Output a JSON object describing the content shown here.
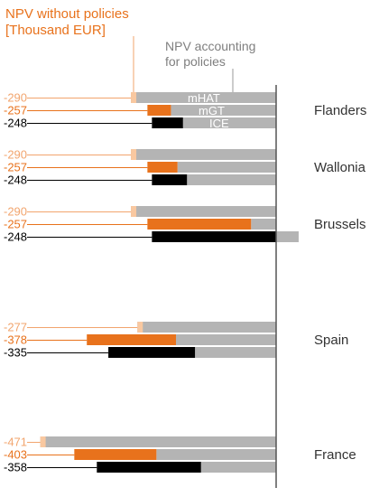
{
  "chart_data": {
    "type": "bar",
    "title": "NPV without policies [Thousand EUR]",
    "title_lines": [
      "NPV without policies",
      "[Thousand EUR]"
    ],
    "annotation_lines": [
      "NPV accounting",
      "for policies"
    ],
    "series_labels": [
      "mHAT",
      "mGT",
      "ICE"
    ],
    "series_colors": {
      "mHAT": "#f9c8a0",
      "mGT": "#e8721c",
      "ICE": "#000000",
      "with_policies": "#b4b4b4"
    },
    "value_label_colors": {
      "mHAT": "#f2a56e",
      "mGT": "#e8721c",
      "ICE": "#000000"
    },
    "regions": [
      {
        "name": "Flanders",
        "rows": [
          {
            "series": "mHAT",
            "label": "-290",
            "without": -290,
            "with": -290
          },
          {
            "series": "mGT",
            "label": "-257",
            "without": -257,
            "with": -210
          },
          {
            "series": "ICE",
            "label": "-248",
            "without": -248,
            "with": -186
          }
        ]
      },
      {
        "name": "Wallonia",
        "rows": [
          {
            "series": "mHAT",
            "label": "-290",
            "without": -290,
            "with": -290
          },
          {
            "series": "mGT",
            "label": "-257",
            "without": -257,
            "with": -197
          },
          {
            "series": "ICE",
            "label": "-248",
            "without": -248,
            "with": -178
          }
        ]
      },
      {
        "name": "Brussels",
        "rows": [
          {
            "series": "mHAT",
            "label": "-290",
            "without": -290,
            "with": -290
          },
          {
            "series": "mGT",
            "label": "-257",
            "without": -257,
            "with": -50
          },
          {
            "series": "ICE",
            "label": "-248",
            "without": -248,
            "with": 45
          }
        ]
      },
      {
        "name": "Spain",
        "rows": [
          {
            "series": "mHAT",
            "label": "-277",
            "without": -277,
            "with": -277
          },
          {
            "series": "mGT",
            "label": "-378",
            "without": -378,
            "with": -200
          },
          {
            "series": "ICE",
            "label": "-335",
            "without": -335,
            "with": -162
          }
        ]
      },
      {
        "name": "France",
        "rows": [
          {
            "series": "mHAT",
            "label": "-471",
            "without": -471,
            "with": -471
          },
          {
            "series": "mGT",
            "label": "-403",
            "without": -403,
            "with": -239
          },
          {
            "series": "ICE",
            "label": "-358",
            "without": -358,
            "with": -150
          }
        ]
      }
    ]
  }
}
